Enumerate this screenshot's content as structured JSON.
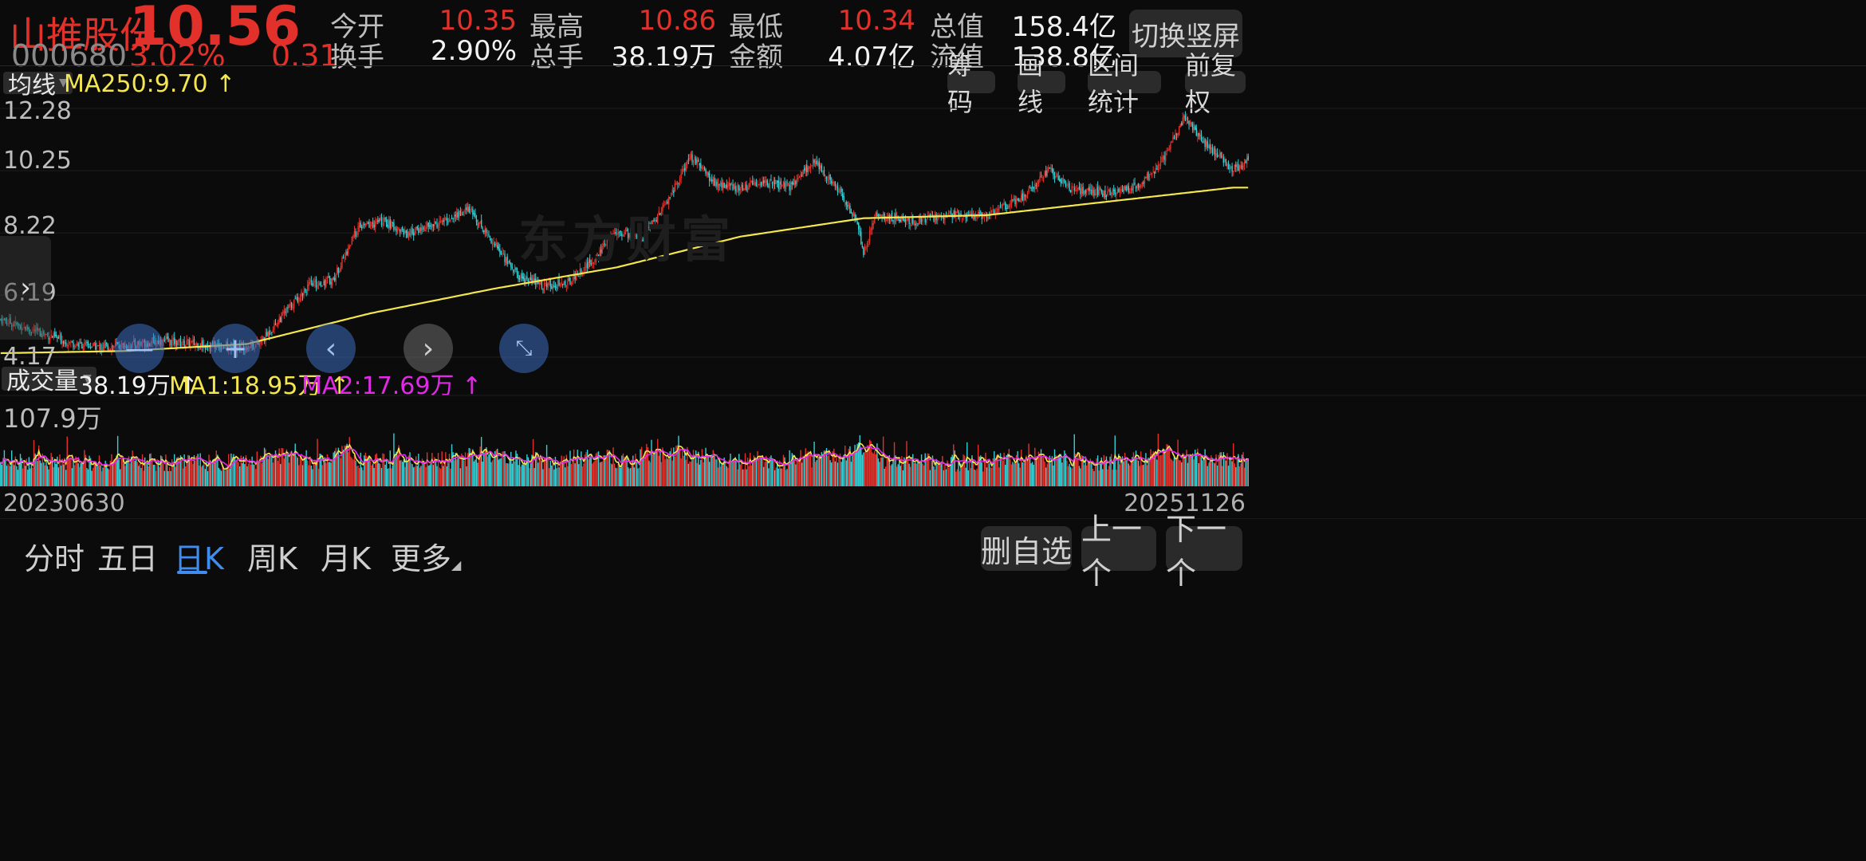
{
  "header": {
    "stock_name": "山推股份",
    "price": "10.56",
    "code": "000680",
    "change_pct": "3.02%",
    "change_abs": "0.31",
    "switch_label": "切换竖屏",
    "stats": [
      {
        "label": "今开",
        "value": "10.35",
        "color": "red"
      },
      {
        "label": "最高",
        "value": "10.86",
        "color": "red"
      },
      {
        "label": "最低",
        "value": "10.34",
        "color": "red"
      },
      {
        "label": "总值",
        "value": "158.4亿",
        "color": "white"
      },
      {
        "label": "换手",
        "value": "2.90%",
        "color": "white"
      },
      {
        "label": "总手",
        "value": "38.19万",
        "color": "white"
      },
      {
        "label": "金额",
        "value": "4.07亿",
        "color": "white"
      },
      {
        "label": "流值",
        "value": "138.8亿",
        "color": "white"
      }
    ]
  },
  "ma_bar": {
    "selector": "均线",
    "ma250": "MA250:9.70 ↑",
    "buttons": [
      "筹码",
      "画线",
      "区间统计",
      "前复权"
    ]
  },
  "price_axis": [
    "12.28",
    "10.25",
    "8.22",
    "6.19",
    "4.17"
  ],
  "watermark": "东方财富",
  "volume_bar": {
    "selector": "成交量",
    "vol": "38.19万 ↑",
    "ma1": "MA1:18.95万 ↑",
    "ma2": "MA2:17.69万 ↑",
    "max_label": "107.9万"
  },
  "dates": {
    "start": "20230630",
    "end": "20251126"
  },
  "tabs": [
    "分时",
    "五日",
    "日K",
    "周K",
    "月K",
    "更多"
  ],
  "active_tab": "日K",
  "actions": [
    "删自选",
    "上一个",
    "下一个"
  ],
  "icons": {
    "zoom_out": "minus-icon",
    "zoom_in": "plus-icon",
    "prev": "chevron-left-icon",
    "next": "chevron-right-icon",
    "shrink": "shrink-icon",
    "side": "chevron-right-icon"
  },
  "colors": {
    "up": "#e2312b",
    "down": "#35d0d6",
    "ma250": "#f3e64e",
    "ma1": "#f3e64e",
    "ma2": "#e02ae6",
    "tab_active": "#3f8df0"
  },
  "chart_data": {
    "type": "candlestick",
    "price_ylim": [
      4.17,
      12.28
    ],
    "price_ticks": [
      12.28,
      10.25,
      8.22,
      6.19,
      4.17
    ],
    "x_start": "20230630",
    "x_end": "20251126",
    "close_waypoints": [
      [
        0,
        5.4
      ],
      [
        30,
        5.0
      ],
      [
        60,
        4.6
      ],
      [
        80,
        4.5
      ],
      [
        100,
        4.55
      ],
      [
        130,
        4.7
      ],
      [
        160,
        4.6
      ],
      [
        190,
        4.5
      ],
      [
        210,
        4.6
      ],
      [
        230,
        5.6
      ],
      [
        250,
        6.5
      ],
      [
        270,
        6.7
      ],
      [
        290,
        8.4
      ],
      [
        310,
        8.6
      ],
      [
        330,
        8.2
      ],
      [
        360,
        8.6
      ],
      [
        380,
        9.0
      ],
      [
        400,
        7.9
      ],
      [
        420,
        6.8
      ],
      [
        440,
        6.5
      ],
      [
        460,
        6.6
      ],
      [
        480,
        7.3
      ],
      [
        500,
        8.3
      ],
      [
        520,
        8.0
      ],
      [
        540,
        9.2
      ],
      [
        560,
        10.7
      ],
      [
        580,
        9.8
      ],
      [
        600,
        9.7
      ],
      [
        620,
        9.9
      ],
      [
        640,
        9.7
      ],
      [
        660,
        10.6
      ],
      [
        680,
        9.6
      ],
      [
        695,
        8.5
      ],
      [
        700,
        7.6
      ],
      [
        710,
        8.8
      ],
      [
        740,
        8.6
      ],
      [
        770,
        8.8
      ],
      [
        800,
        8.8
      ],
      [
        830,
        9.4
      ],
      [
        850,
        10.3
      ],
      [
        870,
        9.6
      ],
      [
        900,
        9.5
      ],
      [
        920,
        9.7
      ],
      [
        940,
        10.4
      ],
      [
        960,
        12.0
      ],
      [
        980,
        11.0
      ],
      [
        1000,
        10.3
      ],
      [
        1012,
        10.56
      ]
    ],
    "ma250_waypoints": [
      [
        0,
        4.3
      ],
      [
        100,
        4.37
      ],
      [
        200,
        4.6
      ],
      [
        300,
        5.6
      ],
      [
        400,
        6.4
      ],
      [
        500,
        7.1
      ],
      [
        600,
        8.1
      ],
      [
        700,
        8.7
      ],
      [
        800,
        8.8
      ],
      [
        900,
        9.25
      ],
      [
        1000,
        9.7
      ],
      [
        1012,
        9.7
      ]
    ],
    "volume_ylim": [
      0,
      107.9
    ],
    "volume_unit": "万",
    "volume_last": 38.19,
    "ma1_last": 18.95,
    "ma2_last": 17.69
  }
}
